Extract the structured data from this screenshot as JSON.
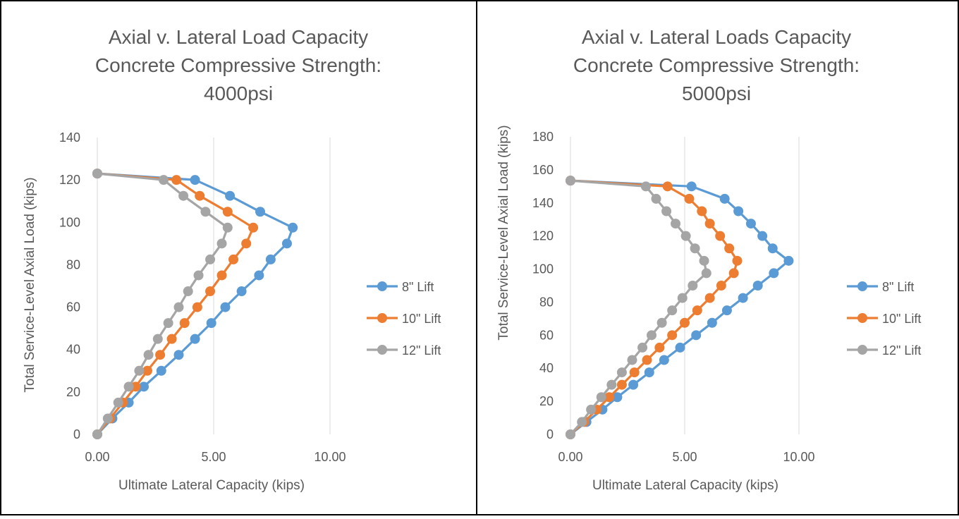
{
  "charts": [
    {
      "title_lines": [
        "Axial v. Lateral Load Capacity",
        "Concrete Compressive Strength:",
        "4000psi"
      ],
      "xlabel": "Ultimate Lateral Capacity (kips)",
      "ylabel": "Total Service-Level Axial Load (kips)",
      "x_tick_labels": [
        "0.00",
        "5.00",
        "10.00"
      ],
      "y_tick_labels": [
        "0",
        "20",
        "40",
        "60",
        "80",
        "100",
        "120",
        "140"
      ]
    },
    {
      "title_lines": [
        "Axial v. Lateral Loads Capacity",
        "Concrete Compressive Strength:",
        "5000psi"
      ],
      "xlabel": "Ultimate Lateral Capacity (kips)",
      "ylabel": "Total Service-Level Axial Load (kips)",
      "x_tick_labels": [
        "0.00",
        "5.00",
        "10.00"
      ],
      "y_tick_labels": [
        "0",
        "20",
        "40",
        "60",
        "80",
        "100",
        "120",
        "140",
        "160",
        "180"
      ]
    }
  ],
  "chart_data": [
    {
      "type": "scatter",
      "title": "Axial v. Lateral Load Capacity Concrete Compressive Strength: 4000psi",
      "xlabel": "Ultimate Lateral Capacity (kips)",
      "ylabel": "Total Service-Level Axial Load (kips)",
      "xlim": [
        0,
        10
      ],
      "ylim": [
        0,
        140
      ],
      "x_ticks": [
        0,
        5,
        10
      ],
      "y_ticks": [
        0,
        20,
        40,
        60,
        80,
        100,
        120,
        140
      ],
      "grid": "vertical",
      "legend": "right",
      "series": [
        {
          "name": "8\" Lift",
          "color": "#5B9BD5",
          "x": [
            0.0,
            0.65,
            1.35,
            2.0,
            2.75,
            3.5,
            4.2,
            4.9,
            5.5,
            6.2,
            6.95,
            7.45,
            8.15,
            8.4,
            7.0,
            5.7,
            4.2,
            0.0
          ],
          "y": [
            0,
            7.5,
            15,
            22.5,
            30,
            37.5,
            45,
            52.5,
            60,
            67.5,
            75,
            82.5,
            90,
            97.5,
            105,
            112.5,
            120,
            123
          ]
        },
        {
          "name": "10\" Lift",
          "color": "#ED7D31",
          "x": [
            0.0,
            0.55,
            1.1,
            1.65,
            2.15,
            2.7,
            3.2,
            3.75,
            4.3,
            4.85,
            5.35,
            5.85,
            6.4,
            6.7,
            5.6,
            4.4,
            3.4,
            0.0
          ],
          "y": [
            0,
            7.5,
            15,
            22.5,
            30,
            37.5,
            45,
            52.5,
            60,
            67.5,
            75,
            82.5,
            90,
            97.5,
            105,
            112.5,
            120,
            123
          ]
        },
        {
          "name": "12\" Lift",
          "color": "#A5A5A5",
          "x": [
            0.0,
            0.45,
            0.9,
            1.35,
            1.8,
            2.2,
            2.6,
            3.05,
            3.5,
            3.9,
            4.35,
            4.85,
            5.35,
            5.6,
            4.65,
            3.7,
            2.85,
            0.0
          ],
          "y": [
            0,
            7.5,
            15,
            22.5,
            30,
            37.5,
            45,
            52.5,
            60,
            67.5,
            75,
            82.5,
            90,
            97.5,
            105,
            112.5,
            120,
            123
          ]
        }
      ]
    },
    {
      "type": "scatter",
      "title": "Axial v. Lateral Loads Capacity Concrete Compressive Strength: 5000psi",
      "xlabel": "Ultimate Lateral Capacity (kips)",
      "ylabel": "Total Service-Level Axial Load (kips)",
      "xlim": [
        0,
        10
      ],
      "ylim": [
        0,
        180
      ],
      "x_ticks": [
        0,
        5,
        10
      ],
      "y_ticks": [
        0,
        20,
        40,
        60,
        80,
        100,
        120,
        140,
        160,
        180
      ],
      "grid": "vertical",
      "legend": "right",
      "series": [
        {
          "name": "8\" Lift",
          "color": "#5B9BD5",
          "x": [
            0.0,
            0.7,
            1.4,
            2.05,
            2.75,
            3.45,
            4.1,
            4.8,
            5.5,
            6.2,
            6.85,
            7.55,
            8.2,
            8.9,
            9.55,
            8.85,
            8.4,
            7.9,
            7.35,
            6.75,
            5.3,
            0.0
          ],
          "y": [
            0,
            7.5,
            15,
            22.5,
            30,
            37.5,
            45,
            52.5,
            60,
            67.5,
            75,
            82.5,
            90,
            97.5,
            105,
            112.5,
            120,
            127.5,
            135,
            142.5,
            150,
            153.5
          ],
          "label_count": 22
        },
        {
          "name": "10\" Lift",
          "color": "#ED7D31",
          "x": [
            0.0,
            0.6,
            1.15,
            1.7,
            2.25,
            2.8,
            3.35,
            3.9,
            4.45,
            5.0,
            5.55,
            6.1,
            6.6,
            7.15,
            7.3,
            6.95,
            6.55,
            6.1,
            5.75,
            5.2,
            4.25,
            0.0
          ],
          "y": [
            0,
            7.5,
            15,
            22.5,
            30,
            37.5,
            45,
            52.5,
            60,
            67.5,
            75,
            82.5,
            90,
            97.5,
            105,
            112.5,
            120,
            127.5,
            135,
            142.5,
            150,
            153.5
          ]
        },
        {
          "name": "12\" Lift",
          "color": "#A5A5A5",
          "x": [
            0.0,
            0.5,
            0.9,
            1.35,
            1.8,
            2.25,
            2.7,
            3.15,
            3.55,
            4.0,
            4.45,
            4.9,
            5.35,
            5.95,
            5.85,
            5.45,
            5.05,
            4.6,
            4.2,
            3.75,
            3.3,
            0.0
          ],
          "y": [
            0,
            7.5,
            15,
            22.5,
            30,
            37.5,
            45,
            52.5,
            60,
            67.5,
            75,
            82.5,
            90,
            97.5,
            105,
            112.5,
            120,
            127.5,
            135,
            142.5,
            150,
            153.5
          ]
        }
      ]
    }
  ]
}
